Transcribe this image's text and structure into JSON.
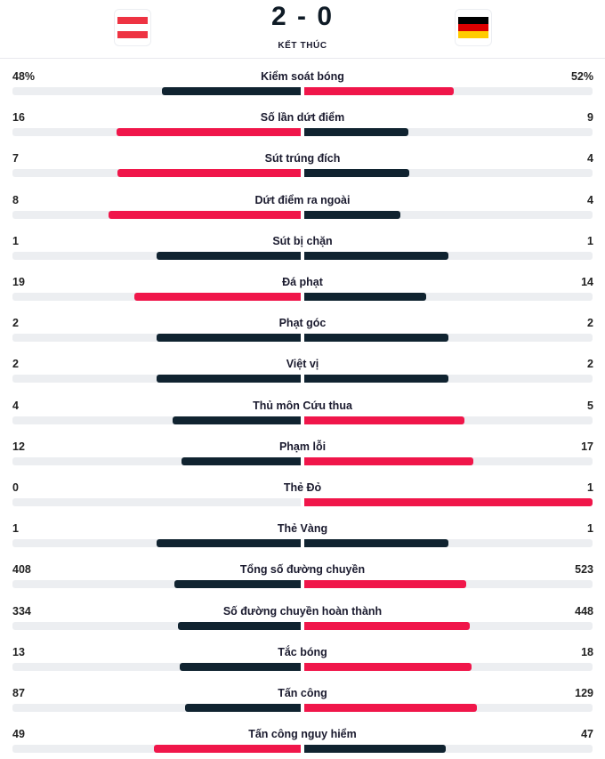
{
  "match": {
    "score": "2 - 0",
    "status": "KẾT THÚC"
  },
  "colors": {
    "winner": "#f0164a",
    "loser": "#102330",
    "track": "#eceef1",
    "home_flag": [
      "#ee3342",
      "#ffffff",
      "#ee3342"
    ],
    "away_flag": [
      "#000000",
      "#dd0000",
      "#ffcc00"
    ]
  },
  "teams": {
    "home_flag_icon": "austria-flag-icon",
    "away_flag_icon": "germany-flag-icon"
  },
  "stats": [
    {
      "label": "Kiểm soát bóng",
      "home": "48%",
      "away": "52%",
      "home_value": 48,
      "away_value": 52
    },
    {
      "label": "Số lần dứt điểm",
      "home": "16",
      "away": "9",
      "home_value": 16,
      "away_value": 9
    },
    {
      "label": "Sút trúng đích",
      "home": "7",
      "away": "4",
      "home_value": 7,
      "away_value": 4
    },
    {
      "label": "Dứt điểm ra ngoài",
      "home": "8",
      "away": "4",
      "home_value": 8,
      "away_value": 4
    },
    {
      "label": "Sút bị chặn",
      "home": "1",
      "away": "1",
      "home_value": 1,
      "away_value": 1
    },
    {
      "label": "Đá phạt",
      "home": "19",
      "away": "14",
      "home_value": 19,
      "away_value": 14
    },
    {
      "label": "Phạt góc",
      "home": "2",
      "away": "2",
      "home_value": 2,
      "away_value": 2
    },
    {
      "label": "Việt vị",
      "home": "2",
      "away": "2",
      "home_value": 2,
      "away_value": 2
    },
    {
      "label": "Thủ môn Cứu thua",
      "home": "4",
      "away": "5",
      "home_value": 4,
      "away_value": 5
    },
    {
      "label": "Phạm lỗi",
      "home": "12",
      "away": "17",
      "home_value": 12,
      "away_value": 17
    },
    {
      "label": "Thẻ Đỏ",
      "home": "0",
      "away": "1",
      "home_value": 0,
      "away_value": 1
    },
    {
      "label": "Thẻ Vàng",
      "home": "1",
      "away": "1",
      "home_value": 1,
      "away_value": 1
    },
    {
      "label": "Tổng số đường chuyền",
      "home": "408",
      "away": "523",
      "home_value": 408,
      "away_value": 523
    },
    {
      "label": "Số đường chuyền hoàn thành",
      "home": "334",
      "away": "448",
      "home_value": 334,
      "away_value": 448
    },
    {
      "label": "Tắc bóng",
      "home": "13",
      "away": "18",
      "home_value": 13,
      "away_value": 18
    },
    {
      "label": "Tấn công",
      "home": "87",
      "away": "129",
      "home_value": 87,
      "away_value": 129
    },
    {
      "label": "Tấn công nguy hiểm",
      "home": "49",
      "away": "47",
      "home_value": 49,
      "away_value": 47
    }
  ]
}
